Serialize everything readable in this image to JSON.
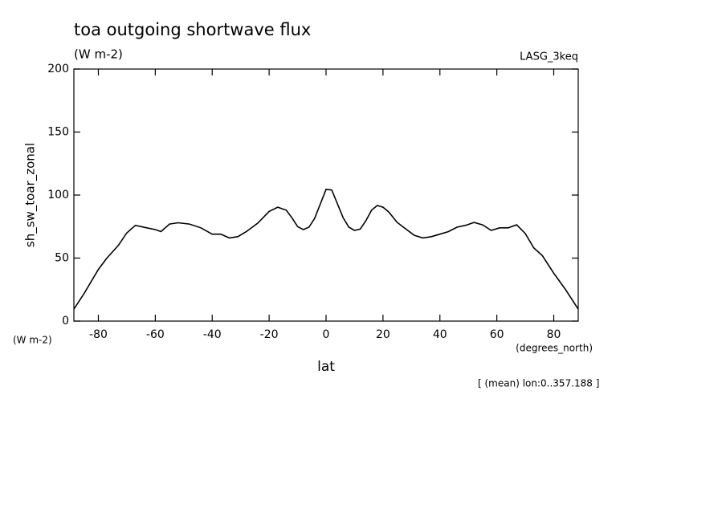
{
  "chart_data": {
    "type": "line",
    "title": "toa outgoing shortwave flux",
    "subtitle": "(W m-2)",
    "annotation": "LASG_3keq",
    "ylabel": "sh_sw_toar_zonal",
    "y_units": "(W m-2)",
    "xlabel": "lat",
    "x_units": "(degrees_north)",
    "footnote": "[ (mean) lon:0..357.188 ]",
    "xlim": [
      -88.6,
      88.6
    ],
    "ylim": [
      0,
      200
    ],
    "xticks": [
      -80,
      -60,
      -40,
      -20,
      0,
      20,
      40,
      60,
      80
    ],
    "yticks": [
      0,
      50,
      100,
      150,
      200
    ],
    "series": [
      {
        "name": "sh_sw_toar_zonal",
        "color": "#000000",
        "x": [
          -88.6,
          -85,
          -80,
          -77,
          -75,
          -73,
          -70,
          -67,
          -63,
          -60,
          -58,
          -55,
          -52,
          -48,
          -44,
          -40,
          -37,
          -34,
          -31,
          -28,
          -24,
          -20,
          -17,
          -14,
          -12,
          -10,
          -8,
          -6,
          -4,
          -2,
          0,
          2,
          4,
          6,
          8,
          10,
          12,
          14,
          16,
          18,
          20,
          22,
          25,
          28,
          31,
          34,
          37,
          40,
          43,
          46,
          49,
          52,
          55,
          58,
          61,
          64,
          67,
          70,
          73,
          76,
          80,
          84,
          88.6
        ],
        "values": [
          9.5,
          22,
          41,
          50,
          55,
          60,
          70,
          76,
          74,
          72.6,
          71,
          77,
          78,
          77,
          74,
          69,
          69,
          66,
          67,
          71,
          77.7,
          87,
          90.4,
          88,
          82,
          75,
          72.6,
          74.5,
          81.5,
          93,
          104.5,
          104,
          93,
          82,
          74.5,
          72,
          73,
          79.6,
          88,
          91.7,
          90.4,
          86.6,
          78.3,
          73.2,
          68,
          66,
          67,
          69,
          71,
          74.5,
          76,
          78.3,
          76.4,
          72,
          74,
          74,
          76.4,
          69.4,
          58,
          52,
          38,
          25.5,
          9.5
        ]
      }
    ]
  }
}
